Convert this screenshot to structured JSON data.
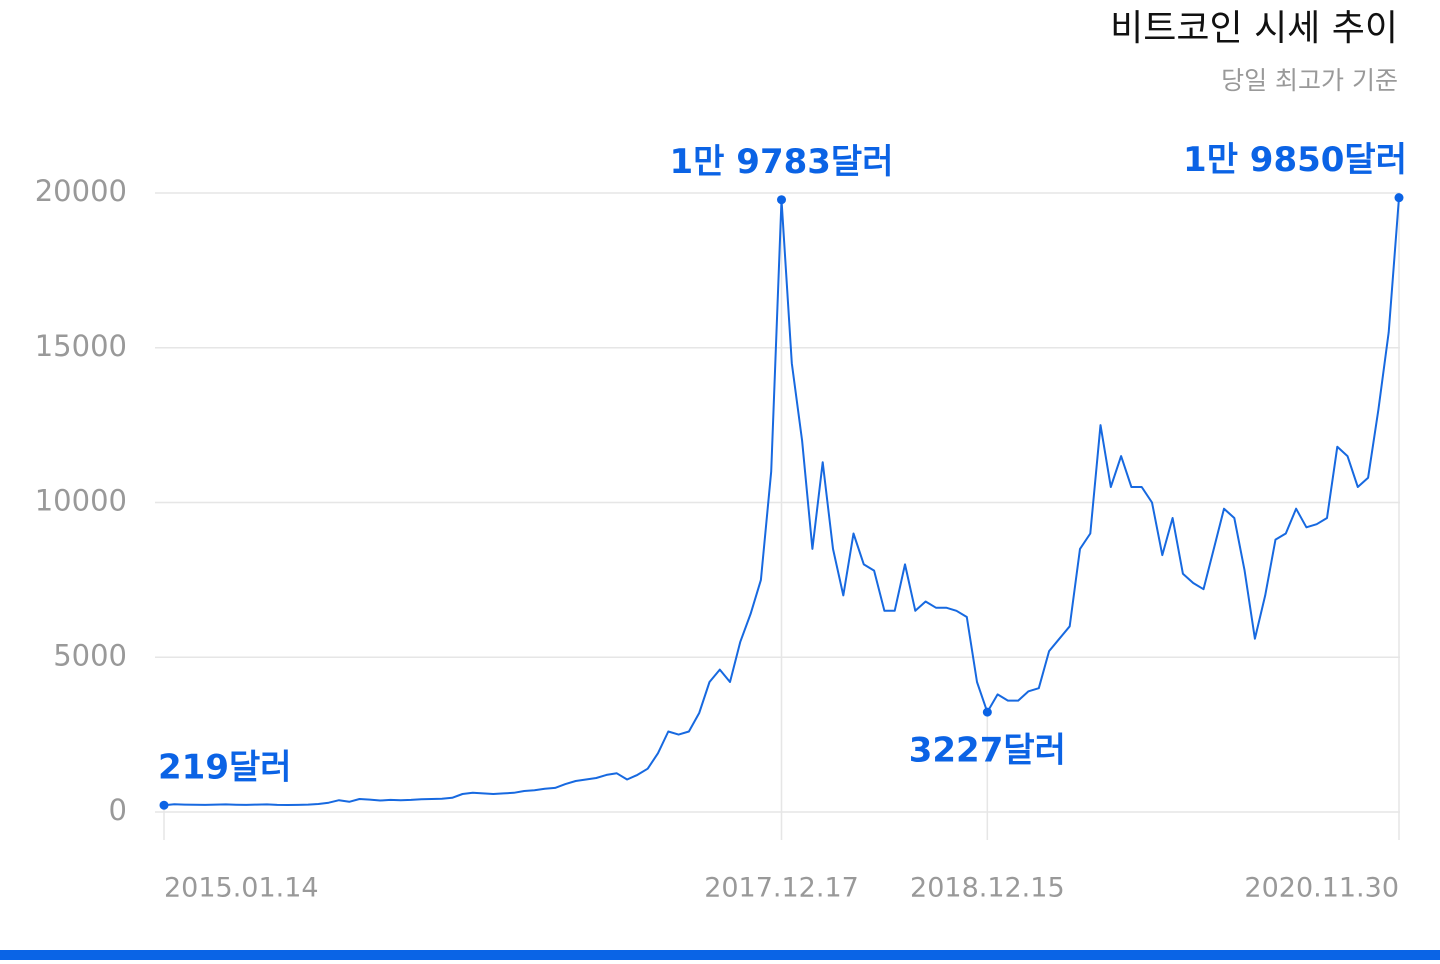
{
  "chart_data": {
    "type": "line",
    "title": "비트코인 시세 추이",
    "subtitle": "당일 최고가 기준",
    "categories": [
      "2015.01.14",
      null,
      null,
      null,
      null,
      null,
      null,
      null,
      null,
      null,
      null,
      null,
      null,
      null,
      null,
      null,
      null,
      null,
      null,
      null,
      null,
      null,
      null,
      null,
      null,
      null,
      null,
      null,
      null,
      null,
      null,
      null,
      null,
      null,
      null,
      null,
      null,
      null,
      null,
      null,
      null,
      null,
      null,
      null,
      null,
      null,
      null,
      null,
      null,
      null,
      null,
      null,
      null,
      null,
      null,
      null,
      null,
      null,
      null,
      null,
      "2017.12.17",
      null,
      null,
      null,
      null,
      null,
      null,
      null,
      null,
      null,
      null,
      null,
      null,
      null,
      null,
      null,
      null,
      null,
      null,
      null,
      "2018.12.15",
      null,
      null,
      null,
      null,
      null,
      null,
      null,
      null,
      null,
      null,
      null,
      null,
      null,
      null,
      null,
      null,
      null,
      null,
      null,
      null,
      null,
      null,
      null,
      null,
      null,
      null,
      null,
      null,
      null,
      null,
      null,
      null,
      null,
      null,
      null,
      null,
      null,
      null,
      null,
      "2020.11.30"
    ],
    "values": [
      219,
      250,
      240,
      235,
      230,
      240,
      245,
      235,
      230,
      240,
      245,
      230,
      225,
      230,
      240,
      260,
      300,
      380,
      330,
      420,
      400,
      370,
      390,
      380,
      390,
      410,
      420,
      430,
      460,
      580,
      620,
      600,
      580,
      600,
      620,
      680,
      700,
      750,
      780,
      900,
      1000,
      1050,
      1100,
      1200,
      1250,
      1050,
      1200,
      1400,
      1900,
      2600,
      2500,
      2600,
      3200,
      4200,
      4600,
      4200,
      5500,
      6400,
      7500,
      11000,
      19783,
      14500,
      12000,
      8500,
      11300,
      8500,
      7000,
      9000,
      8000,
      7800,
      6500,
      6500,
      8000,
      6500,
      6800,
      6600,
      6600,
      6500,
      6300,
      4200,
      3227,
      3800,
      3600,
      3600,
      3900,
      4000,
      5200,
      5600,
      6000,
      8500,
      9000,
      12500,
      10500,
      11500,
      10500,
      10500,
      10000,
      8300,
      9500,
      7700,
      7400,
      7200,
      8500,
      9800,
      9500,
      7800,
      5600,
      7000,
      8800,
      9000,
      9800,
      9200,
      9300,
      9500,
      11800,
      11500,
      10500,
      10800,
      13000,
      15500,
      19850
    ],
    "value_labels": [
      "219달러",
      null,
      null,
      null,
      null,
      null,
      null,
      null,
      null,
      null,
      null,
      null,
      null,
      null,
      null,
      null,
      null,
      null,
      null,
      null,
      null,
      null,
      null,
      null,
      null,
      null,
      null,
      null,
      null,
      null,
      null,
      null,
      null,
      null,
      null,
      null,
      null,
      null,
      null,
      null,
      null,
      null,
      null,
      null,
      null,
      null,
      null,
      null,
      null,
      null,
      null,
      null,
      null,
      null,
      null,
      null,
      null,
      null,
      null,
      null,
      "1만 9783달러",
      null,
      null,
      null,
      null,
      null,
      null,
      null,
      null,
      null,
      null,
      null,
      null,
      null,
      null,
      null,
      null,
      null,
      null,
      null,
      "3227달러",
      null,
      null,
      null,
      null,
      null,
      null,
      null,
      null,
      null,
      null,
      null,
      null,
      null,
      null,
      null,
      null,
      null,
      null,
      null,
      null,
      null,
      null,
      null,
      null,
      null,
      null,
      null,
      null,
      null,
      null,
      null,
      null,
      null,
      null,
      null,
      null,
      null,
      null,
      null,
      "1만 9850달러"
    ],
    "color": "#1769e0",
    "label_color": "#0b63e5",
    "ylim": [
      0,
      20000
    ],
    "yticks": [
      0,
      5000,
      10000,
      15000,
      20000
    ],
    "grid": true
  }
}
